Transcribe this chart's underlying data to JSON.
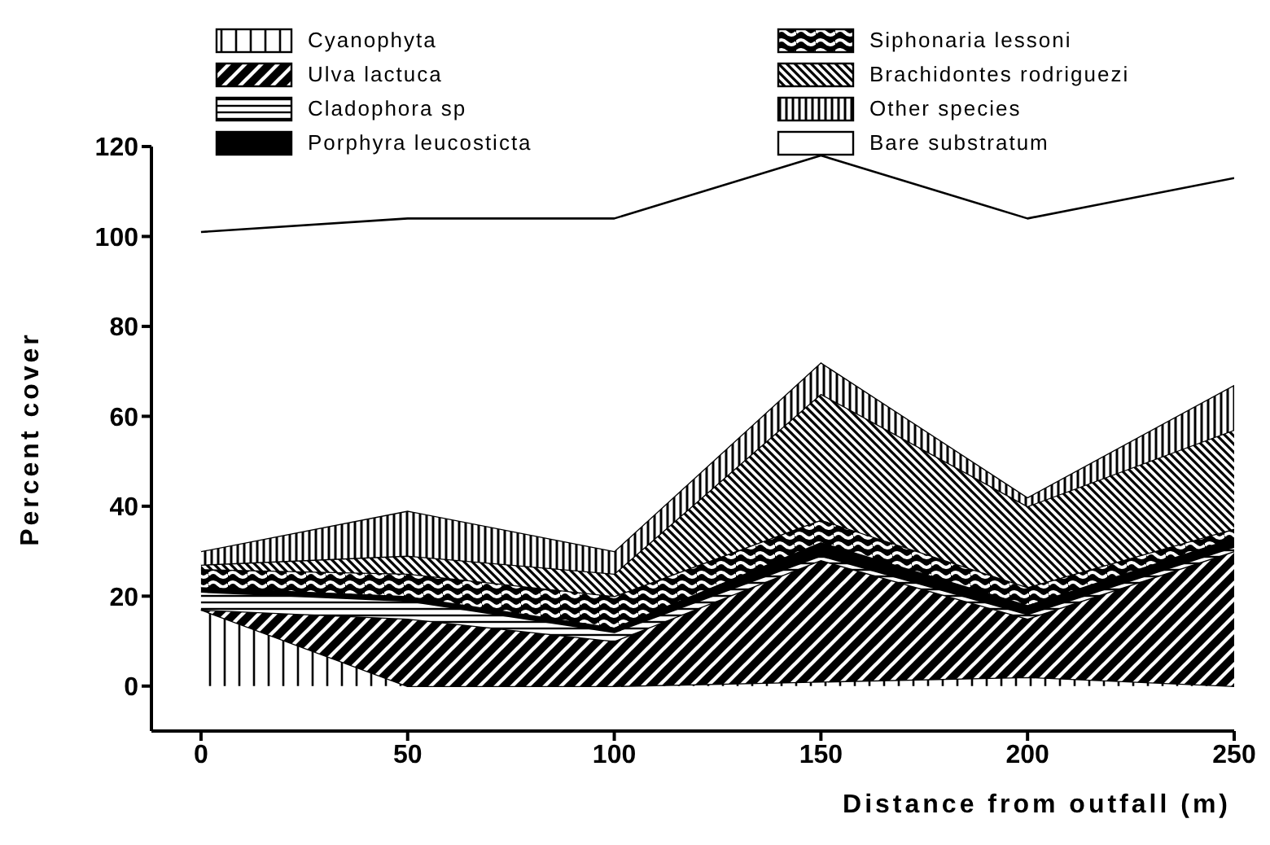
{
  "chart_data": {
    "type": "area",
    "stacked": true,
    "xlabel": "Distance from outfall (m)",
    "ylabel": "Percent cover",
    "x": [
      0,
      50,
      100,
      150,
      200,
      250
    ],
    "xlim": [
      -12,
      250
    ],
    "xticks": [
      0,
      50,
      100,
      150,
      200,
      250
    ],
    "ylim": [
      -10,
      120
    ],
    "yticks": [
      0,
      20,
      40,
      60,
      80,
      100,
      120
    ],
    "legend": "top",
    "series": [
      {
        "name": "Cyanophyta",
        "color": "#000000",
        "values": [
          17,
          0,
          0,
          1,
          2,
          0
        ]
      },
      {
        "name": "Ulva lactuca",
        "color": "#000000",
        "values": [
          0,
          15,
          10,
          27,
          13,
          30
        ]
      },
      {
        "name": "Cladophora sp",
        "color": "#000000",
        "values": [
          4,
          4,
          2,
          1,
          1,
          1
        ]
      },
      {
        "name": "Porphyra leucosticta",
        "color": "#000000",
        "values": [
          1,
          1,
          1,
          3,
          2,
          2
        ]
      },
      {
        "name": "Siphonaria lessoni",
        "color": "#000000",
        "values": [
          4,
          5,
          7,
          5,
          4,
          2
        ]
      },
      {
        "name": "Brachidontes rodriguezi",
        "color": "#000000",
        "values": [
          1,
          4,
          5,
          28,
          18,
          22
        ]
      },
      {
        "name": "Other species",
        "color": "#000000",
        "values": [
          3,
          10,
          5,
          7,
          2,
          10
        ]
      },
      {
        "name": "Bare substratum",
        "color": "#ffffff",
        "values": [
          71,
          65,
          74,
          46,
          62,
          46
        ]
      }
    ]
  }
}
